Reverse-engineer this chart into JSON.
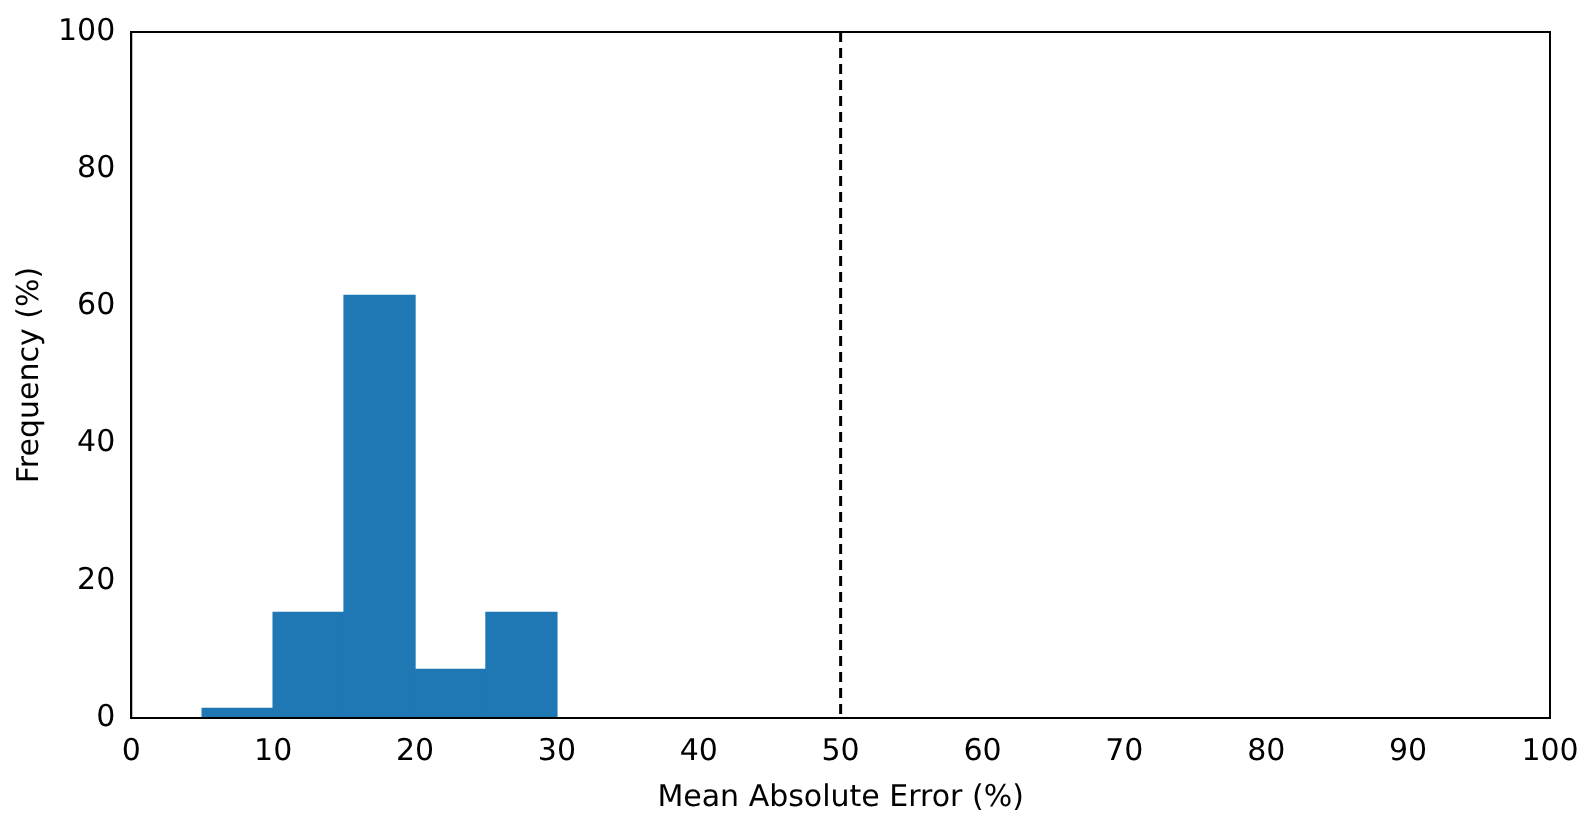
{
  "chart_data": {
    "type": "histogram",
    "xlabel": "Mean Absolute Error (%)",
    "ylabel": "Frequency (%)",
    "bins": [
      5,
      10,
      15,
      20,
      25,
      30
    ],
    "values": [
      1.4,
      15.4,
      61.6,
      7.1,
      15.4
    ],
    "color": "#1f77b4",
    "xlim": [
      0,
      100
    ],
    "xticks": [
      0,
      10,
      20,
      30,
      40,
      50,
      60,
      70,
      80,
      90,
      100
    ],
    "ylim": [
      0,
      100
    ],
    "yticks": [
      0,
      20,
      40,
      60,
      80,
      100
    ],
    "ref_lines": [
      {
        "axis": "x",
        "value": 50,
        "color": "#000000",
        "line_style": "dashed"
      }
    ],
    "grid": false,
    "legend": false
  }
}
